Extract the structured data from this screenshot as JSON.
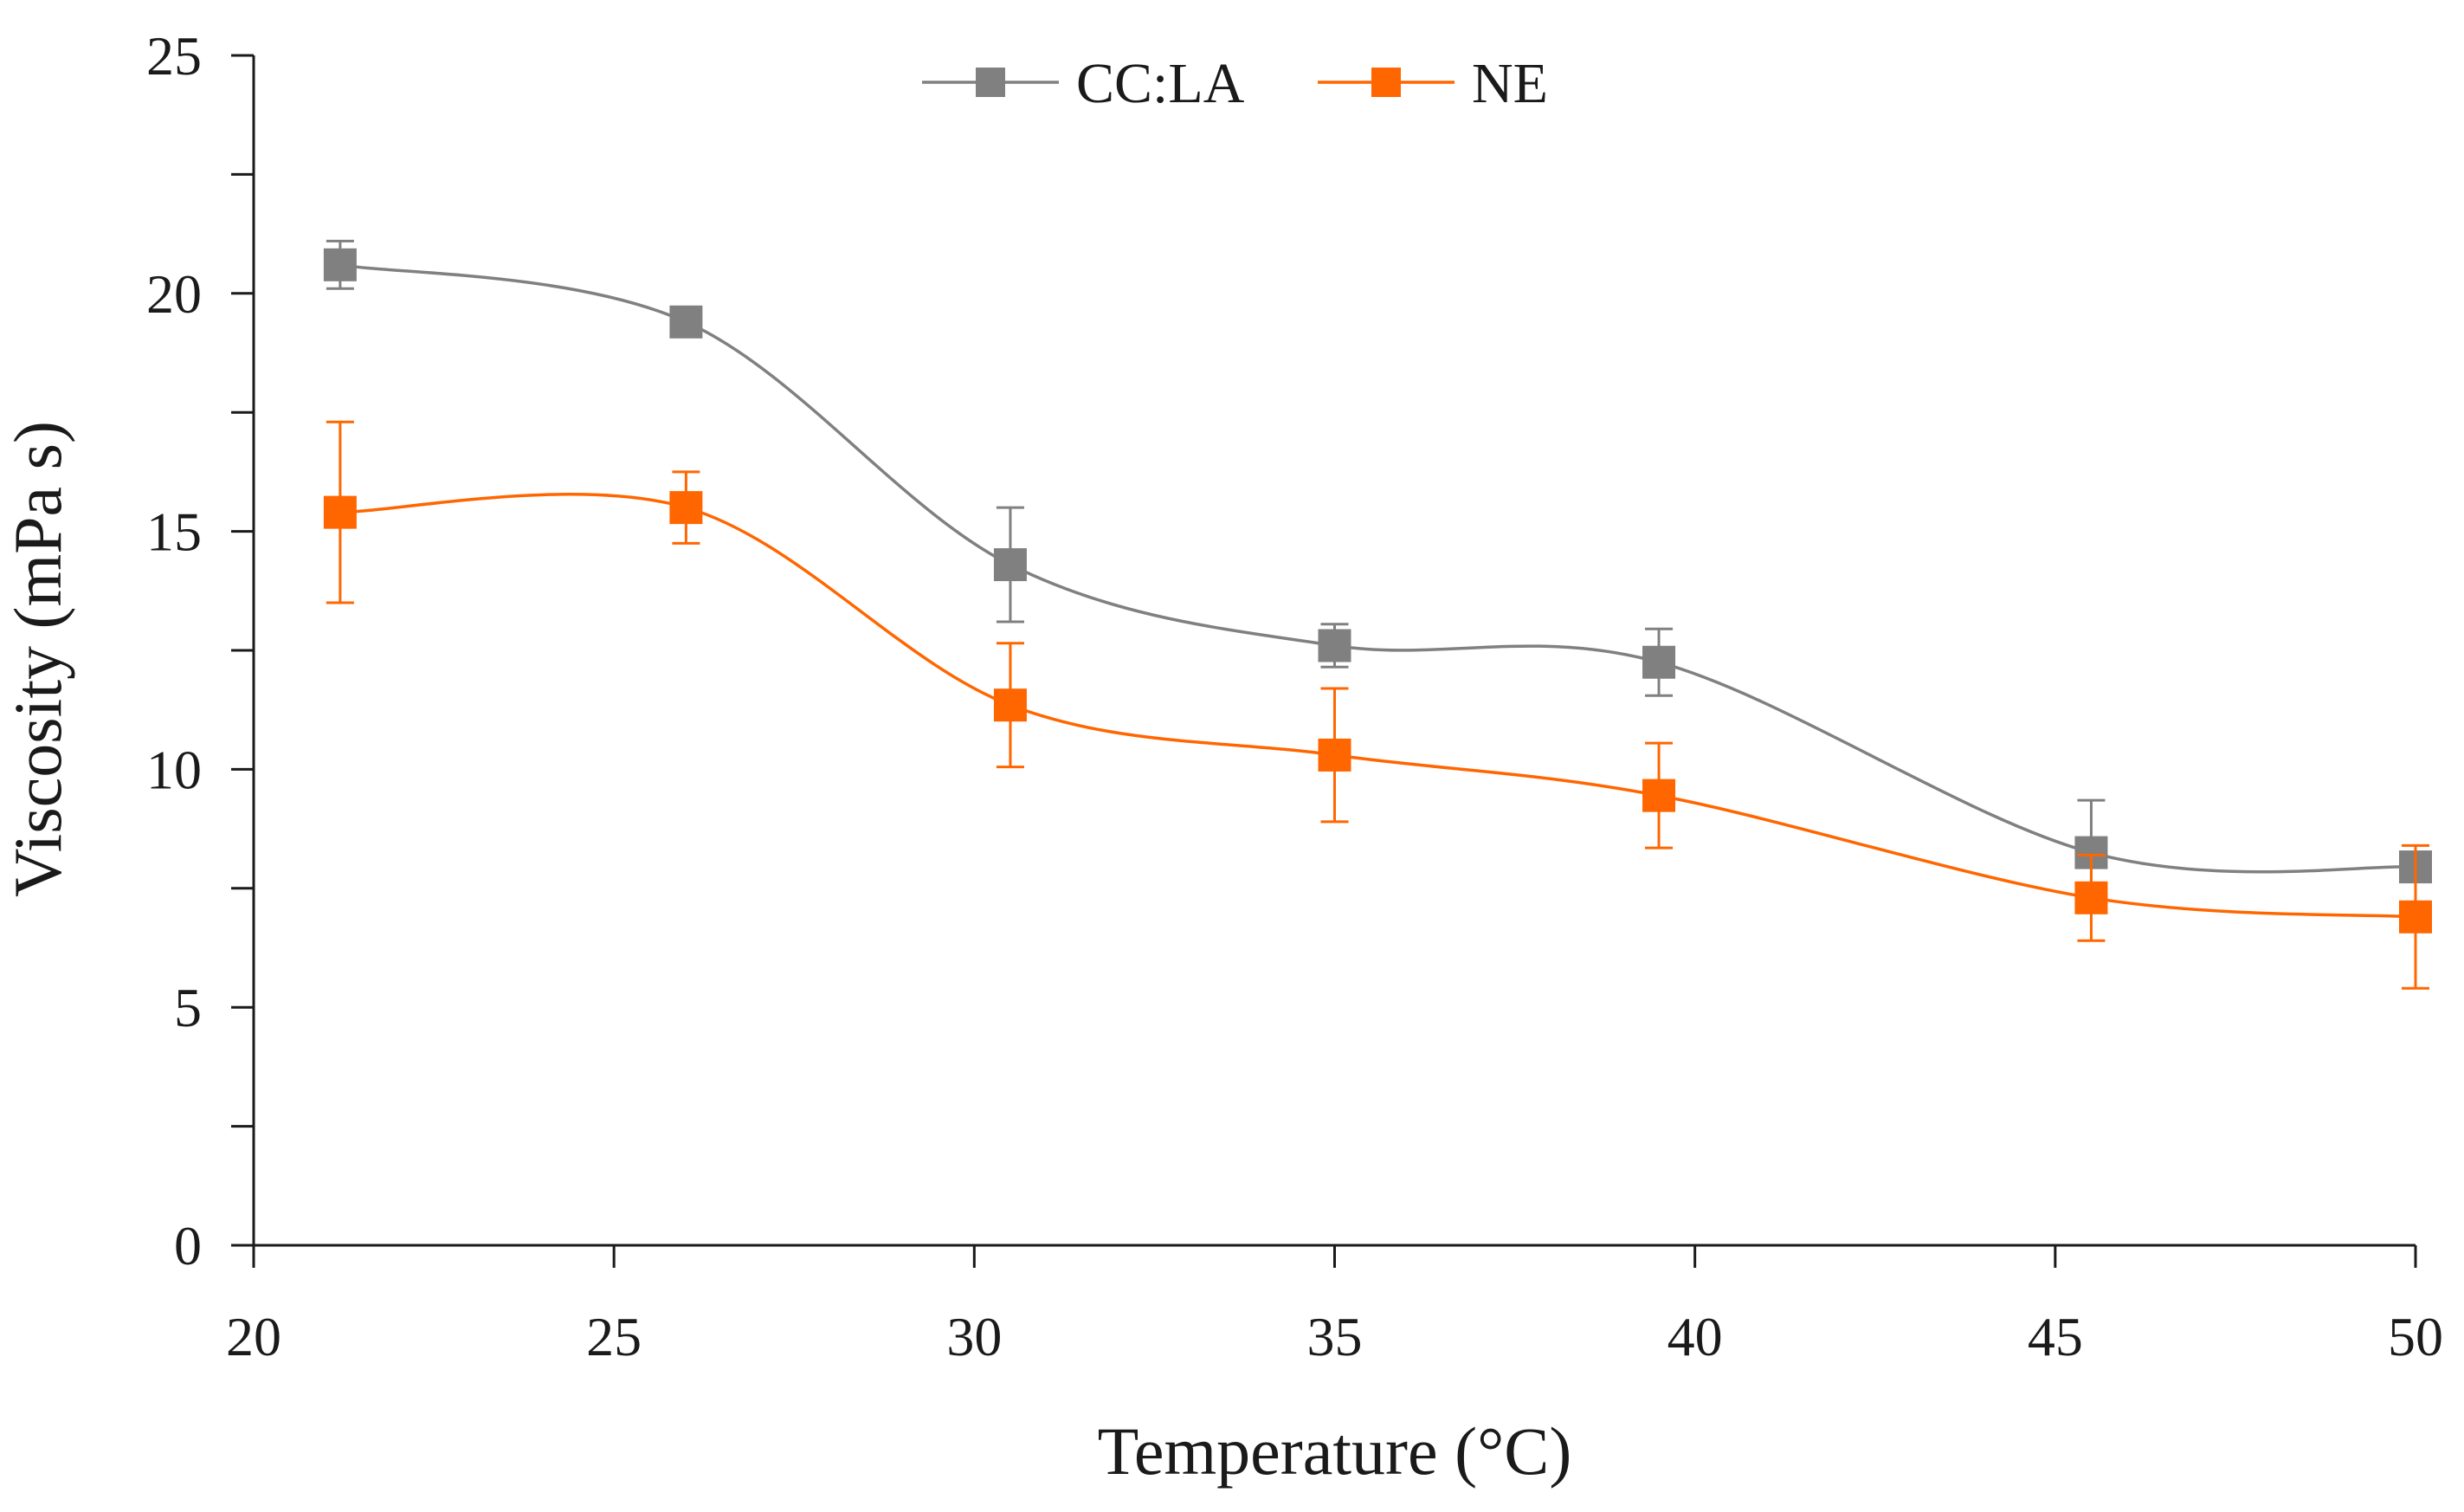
{
  "chart_data": {
    "type": "line",
    "title": "",
    "xlabel": "Temperature (°C)",
    "ylabel": "Viscosity (mPa s)",
    "xlim": [
      20,
      50
    ],
    "ylim": [
      0,
      25
    ],
    "xticks": [
      20,
      25,
      30,
      35,
      40,
      45,
      50
    ],
    "yticks": [
      0,
      5,
      10,
      15,
      20,
      25
    ],
    "grid": false,
    "legend_position": "top-center",
    "series": [
      {
        "name": "CC:LA",
        "color": "#808080",
        "marker": "square",
        "x": [
          21.2,
          26.0,
          30.5,
          35.0,
          39.5,
          45.5,
          50.0
        ],
        "y": [
          20.6,
          19.4,
          14.3,
          12.6,
          12.25,
          8.25,
          7.95
        ],
        "err": [
          0.5,
          0.25,
          1.2,
          0.45,
          0.7,
          1.1,
          0.3
        ]
      },
      {
        "name": "NE",
        "color": "#FF6600",
        "marker": "square",
        "x": [
          21.2,
          26.0,
          30.5,
          35.0,
          39.5,
          45.5,
          50.0
        ],
        "y": [
          15.4,
          15.5,
          11.35,
          10.3,
          9.45,
          7.3,
          6.9
        ],
        "err": [
          1.9,
          0.75,
          1.3,
          1.4,
          1.1,
          0.9,
          1.5
        ]
      }
    ]
  }
}
